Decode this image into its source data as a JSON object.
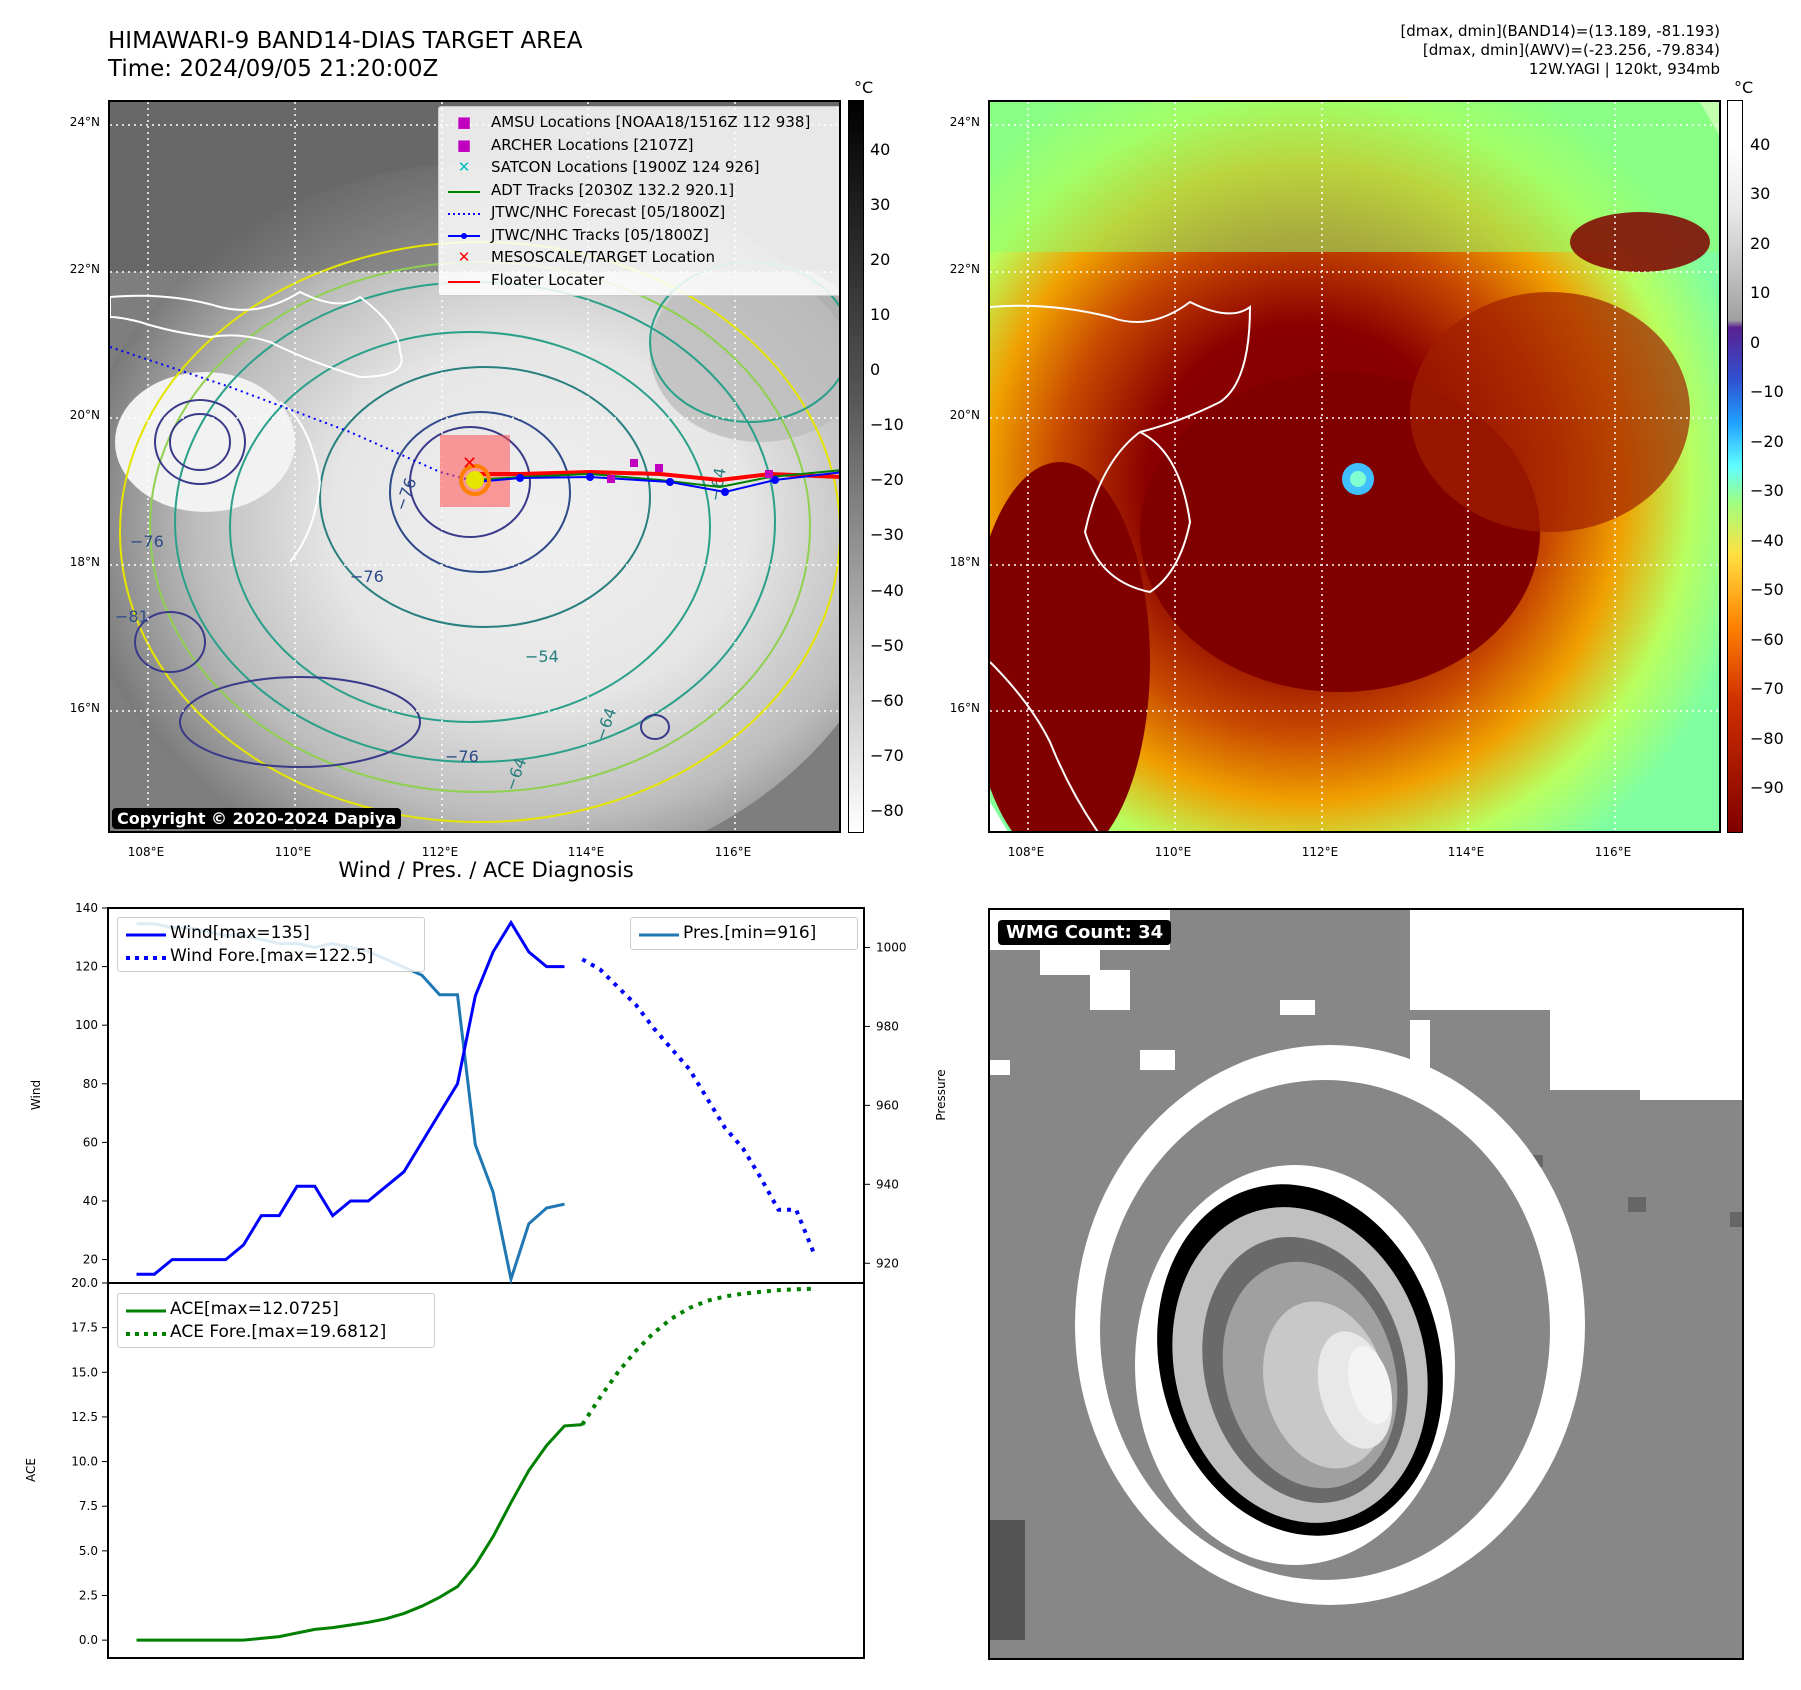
{
  "header": {
    "title_line1": "HIMAWARI-9 BAND14-DIAS TARGET AREA",
    "title_line2": "Time: 2024/09/05 21:20:00Z",
    "info_line1": "[dmax, dmin](BAND14)=(13.189, -81.193)",
    "info_line2": "[dmax, dmin](AWV)=(-23.256, -79.834)",
    "info_line3": "12W.YAGI | 120kt, 934mb"
  },
  "map_axes": {
    "lon_ticks": [
      "108°E",
      "110°E",
      "112°E",
      "114°E",
      "116°E"
    ],
    "lat_ticks": [
      "24°N",
      "22°N",
      "20°N",
      "18°N",
      "16°N"
    ]
  },
  "ir_panel": {
    "colorbar_unit": "°C",
    "colorbar_ticks": [
      "40",
      "30",
      "20",
      "10",
      "0",
      "−10",
      "−20",
      "−30",
      "−40",
      "−50",
      "−60",
      "−70",
      "−80"
    ],
    "contour_labels": [
      "−76",
      "−76",
      "−76",
      "−64",
      "−64",
      "−64",
      "−54",
      "−81",
      "−76"
    ],
    "copyright": "Copyright © 2020-2024 Dapiya",
    "legend": [
      {
        "label": "AMSU Locations [NOAA18/1516Z 112 938]",
        "marker": "square",
        "color": "#bf00bf"
      },
      {
        "label": "ARCHER Locations [2107Z]",
        "marker": "square",
        "color": "#bf00bf"
      },
      {
        "label": "SATCON Locations [1900Z 124 926]",
        "marker": "x",
        "color": "#00bfbf"
      },
      {
        "label": "ADT Tracks [2030Z 132.2 920.1]",
        "marker": "line",
        "color": "#008000"
      },
      {
        "label": "JTWC/NHC Forecast [05/1800Z]",
        "marker": "dotted",
        "color": "#0000ff"
      },
      {
        "label": "JTWC/NHC Tracks [05/1800Z]",
        "marker": "line-dot",
        "color": "#0000ff"
      },
      {
        "label": "MESOSCALE/TARGET Location",
        "marker": "x",
        "color": "#ff0000"
      },
      {
        "label": "Floater Locater",
        "marker": "line",
        "color": "#ff0000"
      }
    ]
  },
  "awv_panel": {
    "colorbar_unit": "°C",
    "colorbar_ticks": [
      "40",
      "30",
      "20",
      "10",
      "0",
      "−10",
      "−20",
      "−30",
      "−40",
      "−50",
      "−60",
      "−70",
      "−80",
      "−90"
    ]
  },
  "wmg_panel": {
    "badge": "WMG Count: 34"
  },
  "chart_data": [
    {
      "type": "line",
      "title": "Wind / Pres. / ACE Diagnosis",
      "ylabel": "Wind",
      "y2label": "Pressure",
      "ylim": [
        12,
        140
      ],
      "y2lim": [
        915,
        1010
      ],
      "y_ticks": [
        "140",
        "120",
        "100",
        "80",
        "60",
        "40",
        "20"
      ],
      "y2_ticks": [
        "1000",
        "980",
        "960",
        "940",
        "920"
      ],
      "x": [
        0,
        1,
        2,
        3,
        4,
        5,
        6,
        7,
        8,
        9,
        10,
        11,
        12,
        13,
        14,
        15,
        16,
        17,
        18,
        19,
        20,
        21,
        22,
        23,
        24,
        25,
        26,
        27,
        28,
        29,
        30,
        31,
        32,
        33,
        34,
        35,
        36,
        37,
        38
      ],
      "series": [
        {
          "name": "Wind[max=135]",
          "axis": "left",
          "style": "solid",
          "color": "#0000ff",
          "x": [
            0,
            1,
            2,
            3,
            4,
            5,
            6,
            7,
            8,
            9,
            10,
            11,
            12,
            13,
            14,
            15,
            16,
            17,
            18,
            19,
            20,
            21,
            22,
            23,
            24
          ],
          "values": [
            15,
            15,
            20,
            20,
            20,
            20,
            25,
            35,
            35,
            45,
            45,
            35,
            40,
            40,
            45,
            50,
            60,
            70,
            80,
            110,
            125,
            135,
            125,
            120,
            120
          ]
        },
        {
          "name": "Wind Fore.[max=122.5]",
          "axis": "left",
          "style": "dotted",
          "color": "#0000ff",
          "x": [
            25,
            26,
            27,
            28,
            29,
            30,
            31,
            32,
            33,
            34,
            35,
            36,
            37,
            38
          ],
          "values": [
            122.5,
            119,
            113,
            107,
            99,
            92,
            85,
            75,
            65,
            58,
            48,
            37,
            37,
            22
          ]
        },
        {
          "name": "Pres.[min=916]",
          "axis": "right",
          "style": "solid",
          "color": "#1f77b4",
          "x": [
            0,
            1,
            2,
            3,
            4,
            5,
            6,
            7,
            8,
            9,
            10,
            11,
            12,
            13,
            14,
            15,
            16,
            17,
            18,
            19,
            20,
            21,
            22,
            23,
            24
          ],
          "values": [
            1006,
            1006,
            1005,
            1005,
            1004,
            1003,
            1003,
            1002,
            1001,
            1001,
            1000,
            1001,
            1000,
            999,
            997,
            995,
            993,
            988,
            988,
            950,
            938,
            916,
            930,
            934,
            935
          ]
        }
      ]
    },
    {
      "type": "line",
      "ylabel": "ACE",
      "ylim": [
        -1,
        20
      ],
      "y_ticks": [
        "20.0",
        "17.5",
        "15.0",
        "12.5",
        "10.0",
        "7.5",
        "5.0",
        "2.5",
        "0.0"
      ],
      "series": [
        {
          "name": "ACE[max=12.0725]",
          "style": "solid",
          "color": "#008000",
          "x": [
            0,
            1,
            2,
            3,
            4,
            5,
            6,
            7,
            8,
            9,
            10,
            11,
            12,
            13,
            14,
            15,
            16,
            17,
            18,
            19,
            20,
            21,
            22,
            23,
            24,
            25
          ],
          "values": [
            0,
            0,
            0,
            0,
            0,
            0,
            0,
            0.1,
            0.2,
            0.4,
            0.6,
            0.7,
            0.85,
            1.0,
            1.2,
            1.5,
            1.9,
            2.4,
            3.0,
            4.2,
            5.8,
            7.7,
            9.5,
            10.9,
            12.0,
            12.07
          ]
        },
        {
          "name": "ACE Fore.[max=19.6812]",
          "style": "dotted",
          "color": "#008000",
          "x": [
            25,
            26,
            27,
            28,
            29,
            30,
            31,
            32,
            33,
            34,
            35,
            36,
            37,
            38
          ],
          "values": [
            12.07,
            13.6,
            15.0,
            16.2,
            17.2,
            18.0,
            18.6,
            19.0,
            19.25,
            19.4,
            19.5,
            19.6,
            19.65,
            19.68
          ]
        }
      ]
    }
  ]
}
